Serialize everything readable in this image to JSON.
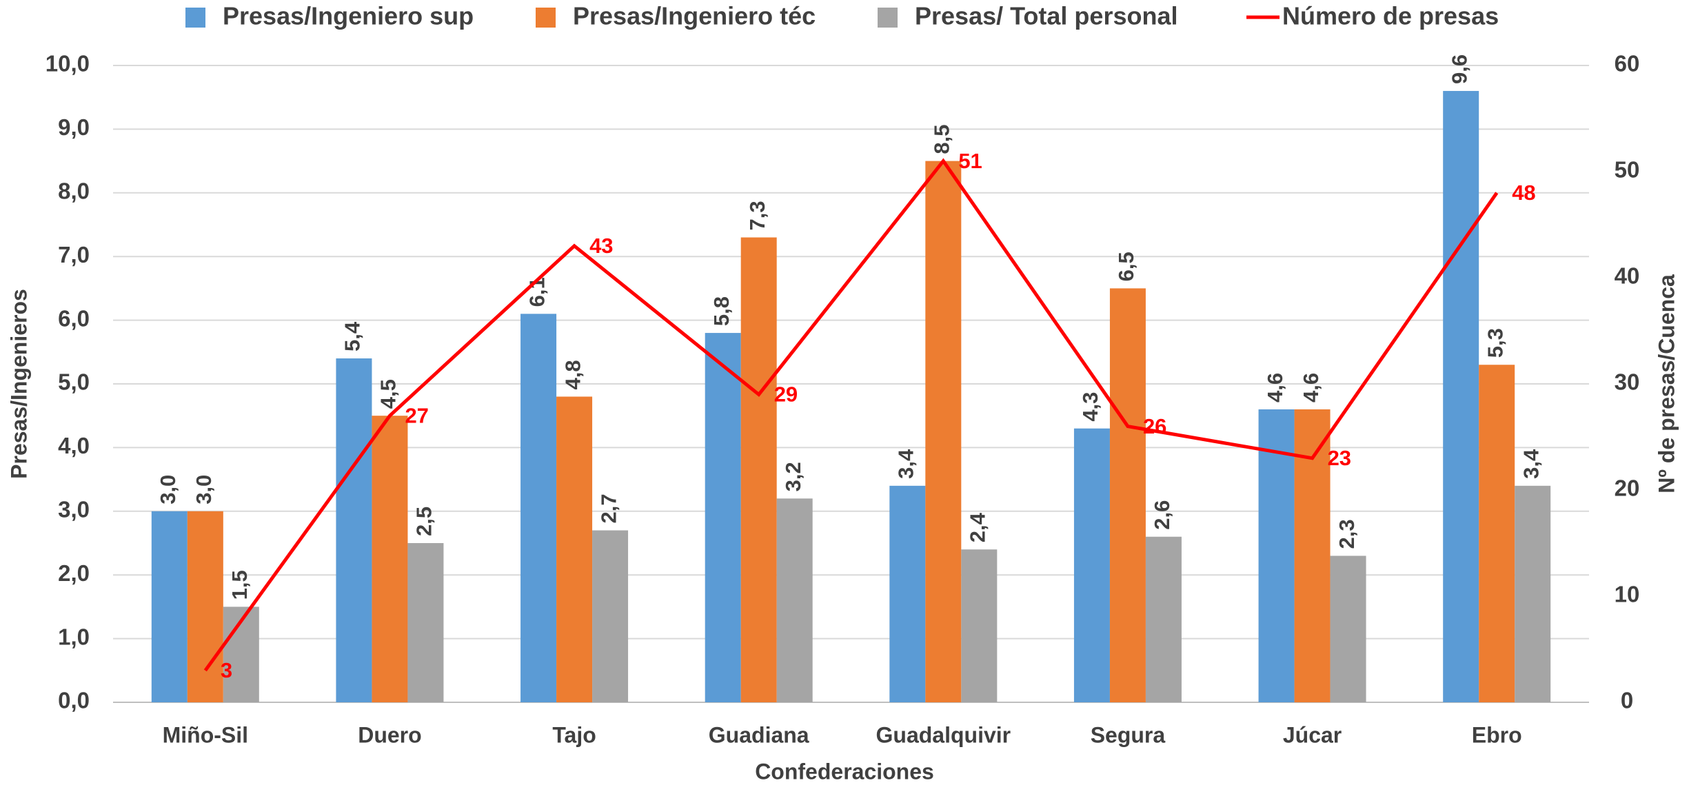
{
  "chart_data": {
    "type": "bar",
    "x_label": "Confederaciones",
    "y_label": "Presas/Ingenieros",
    "y2_label": "Nº de presas/Cuenca",
    "categories": [
      "Miño-Sil",
      "Duero",
      "Tajo",
      "Guadiana",
      "Guadalquivir",
      "Segura",
      "Júcar",
      "Ebro"
    ],
    "series": [
      {
        "name": "Presas/Ingeniero sup",
        "color": "#5b9bd5",
        "type": "bar",
        "values": [
          3.0,
          5.4,
          6.1,
          5.8,
          3.4,
          4.3,
          4.6,
          9.6
        ],
        "value_labels": [
          "3,0",
          "5,4",
          "6,1",
          "5,8",
          "3,4",
          "4,3",
          "4,6",
          "9,6"
        ]
      },
      {
        "name": "Presas/Ingeniero téc",
        "color": "#ed7d31",
        "type": "bar",
        "values": [
          3.0,
          4.5,
          4.8,
          7.3,
          8.5,
          6.5,
          4.6,
          5.3
        ],
        "value_labels": [
          "3,0",
          "4,5",
          "4,8",
          "7,3",
          "8,5",
          "6,5",
          "4,6",
          "5,3"
        ]
      },
      {
        "name": "Presas/ Total personal",
        "color": "#a5a5a5",
        "type": "bar",
        "values": [
          1.5,
          2.5,
          2.7,
          3.2,
          2.4,
          2.6,
          2.3,
          3.4
        ],
        "value_labels": [
          "1,5",
          "2,5",
          "2,7",
          "3,2",
          "2,4",
          "2,6",
          "2,3",
          "3,4"
        ]
      },
      {
        "name": "Número de presas",
        "color": "#ff0000",
        "type": "line",
        "axis": "y2",
        "values": [
          3,
          27,
          43,
          29,
          51,
          26,
          23,
          48
        ]
      }
    ],
    "ylim": [
      0,
      10
    ],
    "yticks": [
      {
        "value": 0,
        "label": "0,0"
      },
      {
        "value": 1,
        "label": "1,0"
      },
      {
        "value": 2,
        "label": "2,0"
      },
      {
        "value": 3,
        "label": "3,0"
      },
      {
        "value": 4,
        "label": "4,0"
      },
      {
        "value": 5,
        "label": "5,0"
      },
      {
        "value": 6,
        "label": "6,0"
      },
      {
        "value": 7,
        "label": "7,0"
      },
      {
        "value": 8,
        "label": "8,0"
      },
      {
        "value": 9,
        "label": "9,0"
      },
      {
        "value": 10,
        "label": "10,0"
      }
    ],
    "y2lim": [
      0,
      60
    ],
    "y2ticks": [
      0,
      10,
      20,
      30,
      40,
      50,
      60
    ],
    "grid": true,
    "legend": "top"
  }
}
